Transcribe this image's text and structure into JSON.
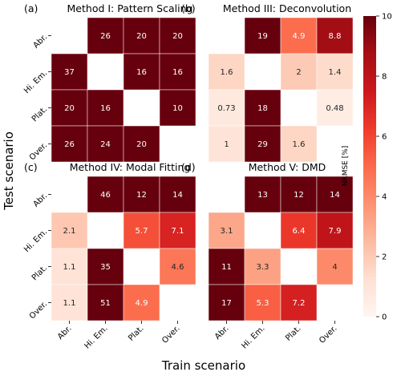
{
  "figure": {
    "xlabel": "Train scenario",
    "ylabel": "Test scenario"
  },
  "colorbar": {
    "label": "NRMSE [%]",
    "min": 0,
    "max": 10,
    "ticks": [
      0,
      2,
      4,
      6,
      8,
      10
    ],
    "colormap": "Reds"
  },
  "chart_data": [
    {
      "type": "heatmap",
      "panel_letter": "(a)",
      "title": "Method I: Pattern Scaling",
      "row_labels": [
        "Abr.",
        "Hi. Em.",
        "Plat.",
        "Over."
      ],
      "col_labels": [
        "Abr.",
        "Hi. Em.",
        "Plat.",
        "Over."
      ],
      "values": [
        [
          null,
          26,
          20,
          20
        ],
        [
          37,
          null,
          16,
          16
        ],
        [
          20,
          16,
          null,
          10
        ],
        [
          26,
          24,
          20,
          null
        ]
      ],
      "cell_text": [
        [
          "",
          "26",
          "20",
          "20"
        ],
        [
          "37",
          "",
          "16",
          "16"
        ],
        [
          "20",
          "16",
          "",
          "10"
        ],
        [
          "26",
          "24",
          "20",
          ""
        ]
      ]
    },
    {
      "type": "heatmap",
      "panel_letter": "(b)",
      "title": "Method III: Deconvolution",
      "row_labels": [
        "Abr.",
        "Hi. Em.",
        "Plat.",
        "Over."
      ],
      "col_labels": [
        "Abr.",
        "Hi. Em.",
        "Plat.",
        "Over."
      ],
      "values": [
        [
          null,
          19,
          4.9,
          8.8
        ],
        [
          1.6,
          null,
          2,
          1.4
        ],
        [
          0.73,
          18,
          null,
          0.48
        ],
        [
          1,
          29,
          1.6,
          null
        ]
      ],
      "cell_text": [
        [
          "",
          "19",
          "4.9",
          "8.8"
        ],
        [
          "1.6",
          "",
          "2",
          "1.4"
        ],
        [
          "0.73",
          "18",
          "",
          "0.48"
        ],
        [
          "1",
          "29",
          "1.6",
          ""
        ]
      ]
    },
    {
      "type": "heatmap",
      "panel_letter": "(c)",
      "title": "Method IV: Modal Fitting",
      "row_labels": [
        "Abr.",
        "Hi. Em.",
        "Plat.",
        "Over."
      ],
      "col_labels": [
        "Abr.",
        "Hi. Em.",
        "Plat.",
        "Over."
      ],
      "values": [
        [
          null,
          46,
          12,
          14
        ],
        [
          2.1,
          null,
          5.7,
          7.1
        ],
        [
          1.1,
          35,
          null,
          4.6
        ],
        [
          1.1,
          51,
          4.9,
          null
        ]
      ],
      "cell_text": [
        [
          "",
          "46",
          "12",
          "14"
        ],
        [
          "2.1",
          "",
          "5.7",
          "7.1"
        ],
        [
          "1.1",
          "35",
          "",
          "4.6"
        ],
        [
          "1.1",
          "51",
          "4.9",
          ""
        ]
      ]
    },
    {
      "type": "heatmap",
      "panel_letter": "(d)",
      "title": "Method V: DMD",
      "row_labels": [
        "Abr.",
        "Hi. Em.",
        "Plat.",
        "Over."
      ],
      "col_labels": [
        "Abr.",
        "Hi. Em.",
        "Plat.",
        "Over."
      ],
      "values": [
        [
          null,
          13,
          12,
          14
        ],
        [
          3.1,
          null,
          6.4,
          7.9
        ],
        [
          11,
          3.3,
          null,
          4
        ],
        [
          17,
          5.3,
          7.2,
          null
        ]
      ],
      "cell_text": [
        [
          "",
          "13",
          "12",
          "14"
        ],
        [
          "3.1",
          "",
          "6.4",
          "7.9"
        ],
        [
          "11",
          "3.3",
          "",
          "4"
        ],
        [
          "17",
          "5.3",
          "7.2",
          ""
        ]
      ]
    }
  ]
}
